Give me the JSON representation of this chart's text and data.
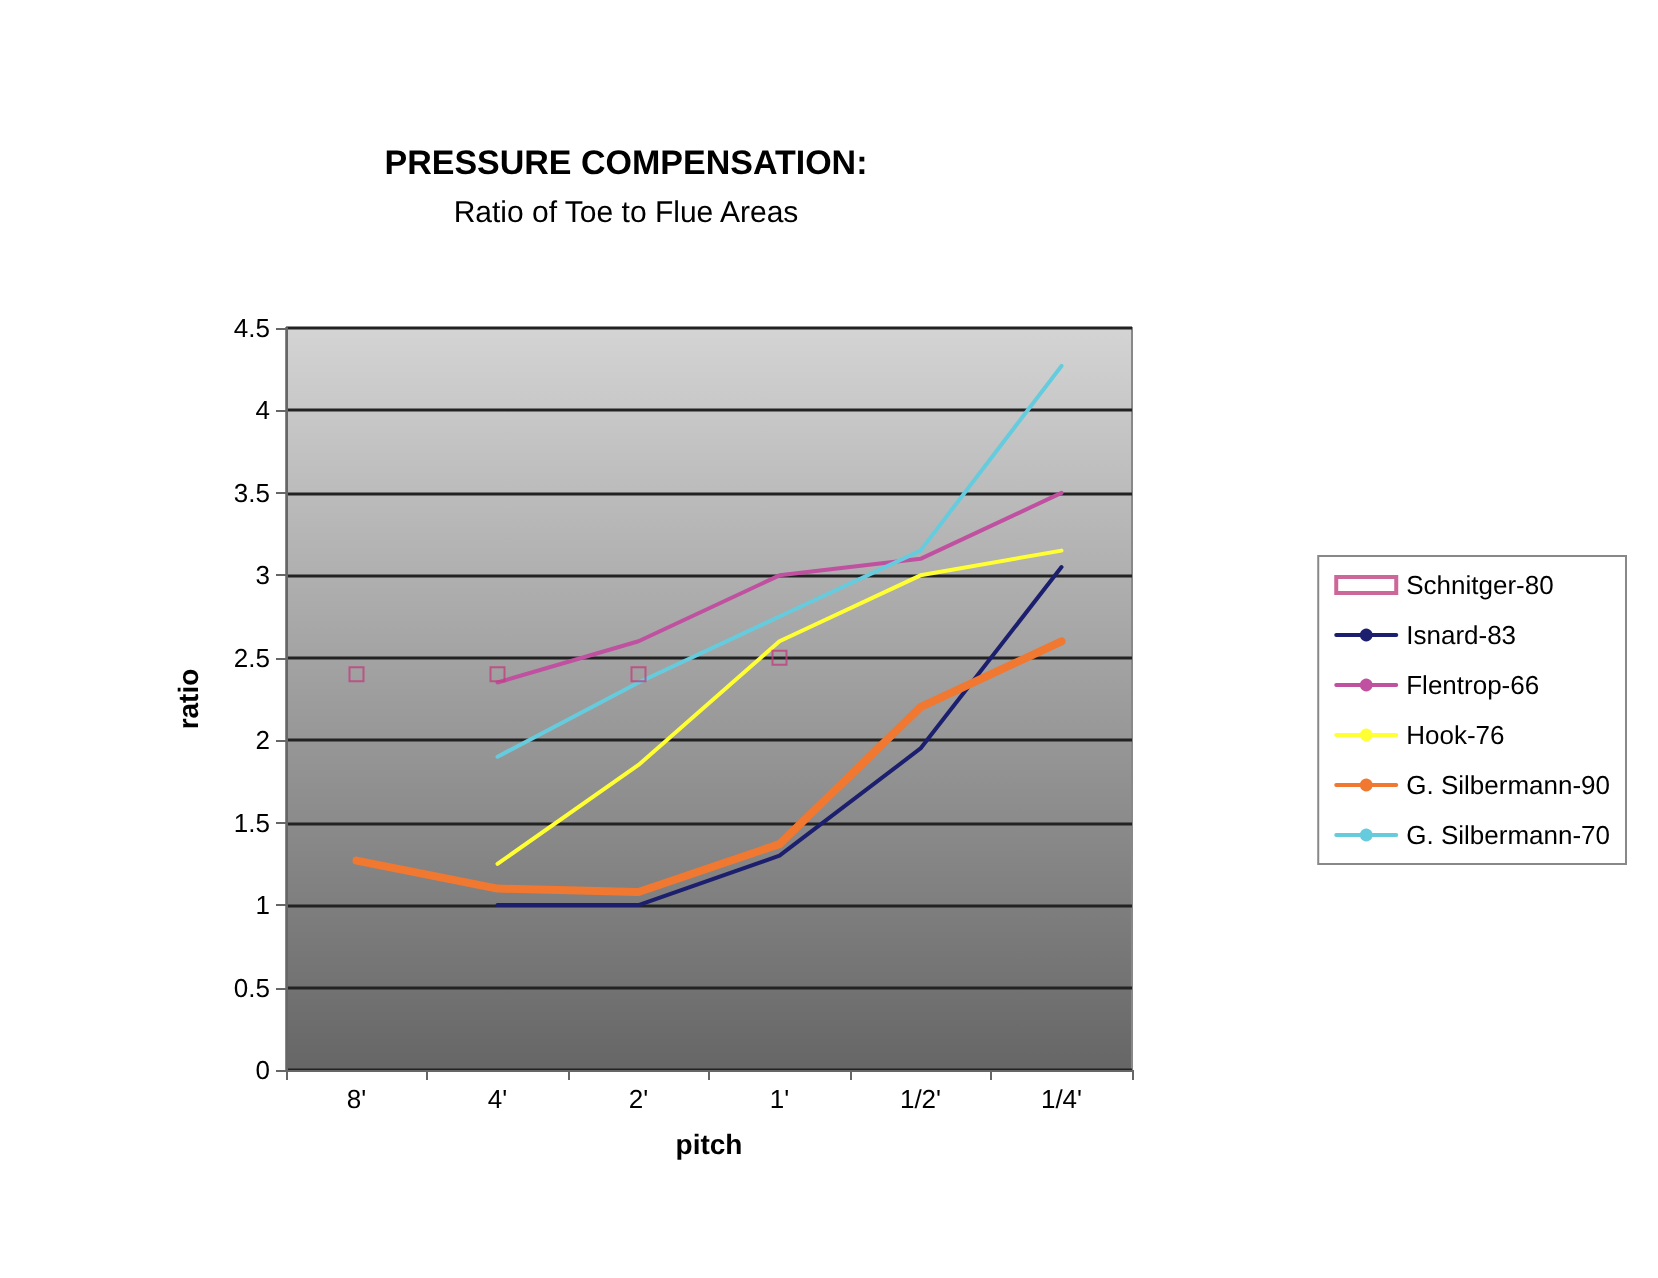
{
  "chart_data": {
    "type": "line",
    "title": "PRESSURE COMPENSATION:",
    "subtitle": "Ratio of Toe to Flue Areas",
    "xlabel": "pitch",
    "ylabel": "ratio",
    "categories": [
      "8'",
      "4'",
      "2'",
      "1'",
      "1/2'",
      "1/4'"
    ],
    "series": [
      {
        "name": "Schnitger-80",
        "type": "scatter",
        "marker": "square",
        "color": "#c04080",
        "values": [
          2.4,
          2.4,
          2.4,
          2.5,
          null,
          null
        ]
      },
      {
        "name": "Isnard-83",
        "color": "#1c1f6e",
        "values": [
          null,
          1.0,
          1.0,
          1.3,
          1.95,
          3.05
        ]
      },
      {
        "name": "Flentrop-66",
        "color": "#c050a0",
        "values": [
          null,
          2.35,
          2.6,
          3.0,
          3.1,
          3.5
        ]
      },
      {
        "name": "Hook-76",
        "color": "#ffff33",
        "values": [
          null,
          1.25,
          1.85,
          2.6,
          3.0,
          3.15
        ]
      },
      {
        "name": "G. Silbermann-90",
        "color": "#f07830",
        "values": [
          1.27,
          1.1,
          1.08,
          1.37,
          2.2,
          2.6
        ]
      },
      {
        "name": "G. Silbermann-70",
        "color": "#66ccdd",
        "values": [
          null,
          1.9,
          2.35,
          2.75,
          3.15,
          4.27
        ]
      }
    ],
    "ylim": [
      0,
      4.5
    ],
    "yticks": [
      0,
      0.5,
      1,
      1.5,
      2,
      2.5,
      3,
      3.5,
      4,
      4.5
    ],
    "grid": "y",
    "legend": "right",
    "marker": "none"
  }
}
